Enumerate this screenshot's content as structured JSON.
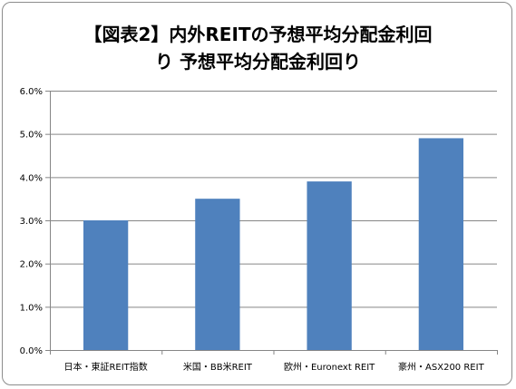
{
  "title_line1": "【図表2】内外REITの予想平均分配金利回",
  "title_line2": "り 予想平均分配金利回り",
  "chart_data": {
    "type": "bar",
    "categories": [
      "日本・東証REIT指数",
      "米国・BB米REIT",
      "欧州・Euronext REIT",
      "豪州・ASX200 REIT"
    ],
    "values": [
      3.0,
      3.5,
      3.9,
      4.9
    ],
    "ylim": [
      0,
      6
    ],
    "yticks": [
      0,
      1,
      2,
      3,
      4,
      5,
      6
    ],
    "ytick_labels": [
      "0.0%",
      "1.0%",
      "2.0%",
      "3.0%",
      "4.0%",
      "5.0%",
      "6.0%"
    ],
    "bar_color": "#4f81bd",
    "grid": true,
    "xlabel": "",
    "ylabel": ""
  }
}
